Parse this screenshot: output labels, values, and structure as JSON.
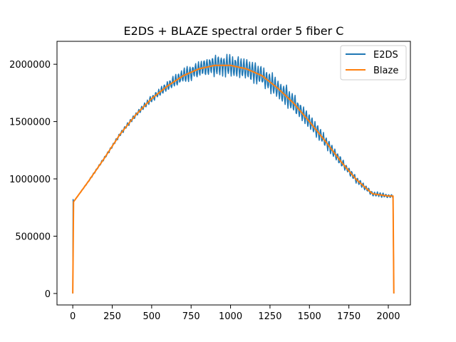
{
  "chart_data": {
    "type": "line",
    "title": "E2DS + BLAZE spectral order 5 fiber C",
    "xlabel": "",
    "ylabel": "",
    "xlim": [
      -100,
      2140
    ],
    "ylim": [
      -100000,
      2200000
    ],
    "x_ticks": [
      0,
      250,
      500,
      750,
      1000,
      1250,
      1500,
      1750,
      2000
    ],
    "x_tick_labels": [
      "0",
      "250",
      "500",
      "750",
      "1000",
      "1250",
      "1500",
      "1750",
      "2000"
    ],
    "y_ticks": [
      0,
      500000,
      1000000,
      1500000,
      2000000
    ],
    "y_tick_labels": [
      "0",
      "500000",
      "1000000",
      "1500000",
      "2000000"
    ],
    "grid": false,
    "legend_position": "top-right",
    "series": [
      {
        "name": "E2DS",
        "color": "#1f77b4",
        "blaze_support_x": [
          0,
          5,
          100,
          200,
          300,
          400,
          500,
          600,
          700,
          800,
          900,
          1000,
          1100,
          1200,
          1300,
          1400,
          1500,
          1600,
          1700,
          1800,
          1900,
          2000,
          2030,
          2035
        ],
        "blaze_support_y": [
          0,
          800000,
          980000,
          1180000,
          1390000,
          1560000,
          1700000,
          1810000,
          1900000,
          1960000,
          1990000,
          1990000,
          1960000,
          1900000,
          1790000,
          1660000,
          1500000,
          1330000,
          1150000,
          990000,
          870000,
          850000,
          850000,
          0
        ],
        "ripple_amplitude_profile": [
          0,
          15000,
          25000,
          60000,
          90000,
          100000,
          90000,
          60000,
          30000,
          15000
        ],
        "ripple_period_px": 18
      },
      {
        "name": "Blaze",
        "color": "#ff7f0e",
        "x": [
          0,
          5,
          100,
          200,
          300,
          400,
          500,
          600,
          700,
          800,
          900,
          1000,
          1100,
          1200,
          1300,
          1400,
          1500,
          1600,
          1700,
          1800,
          1900,
          2000,
          2030,
          2035
        ],
        "y": [
          0,
          800000,
          980000,
          1180000,
          1390000,
          1560000,
          1700000,
          1810000,
          1900000,
          1960000,
          1990000,
          1990000,
          1960000,
          1900000,
          1790000,
          1660000,
          1500000,
          1330000,
          1150000,
          990000,
          870000,
          850000,
          850000,
          0
        ]
      }
    ]
  }
}
